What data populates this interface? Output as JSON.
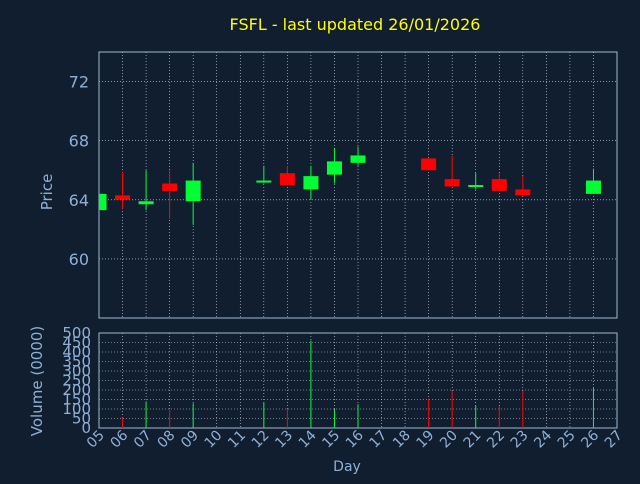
{
  "chart_data": {
    "type": "candlestick",
    "title": "FSFL - last updated 26/01/2026",
    "xlabel": "Day",
    "price_ylabel": "Price",
    "volume_ylabel": "Volume (0000)",
    "x_ticks": [
      "05",
      "06",
      "07",
      "08",
      "09",
      "10",
      "11",
      "12",
      "13",
      "14",
      "15",
      "16",
      "17",
      "18",
      "19",
      "20",
      "21",
      "22",
      "23",
      "24",
      "25",
      "26",
      "27"
    ],
    "price_ylim": [
      56,
      74
    ],
    "price_ticks": [
      60,
      64,
      68,
      72
    ],
    "volume_ylim": [
      0,
      500
    ],
    "volume_ticks": [
      0,
      50,
      100,
      150,
      200,
      250,
      300,
      350,
      400,
      450,
      500
    ],
    "grid": true,
    "colors": {
      "background": "#111e30",
      "frame": "#9fb8d0",
      "grid": "#d6dde8",
      "title": "#ffff00",
      "axis_text": "#8fb0d6",
      "up": "#00ff33",
      "down": "#ff0000"
    },
    "candles": [
      {
        "day": "05",
        "open": 63.3,
        "close": 64.4,
        "high": 64.4,
        "low": 63.2,
        "volume": 0
      },
      {
        "day": "06",
        "open": 64.3,
        "close": 64.0,
        "high": 65.9,
        "low": 63.4,
        "volume": 55
      },
      {
        "day": "07",
        "open": 63.7,
        "close": 63.9,
        "high": 66.0,
        "low": 63.3,
        "volume": 140
      },
      {
        "day": "08",
        "open": 65.1,
        "close": 64.6,
        "high": 66.0,
        "low": 62.7,
        "volume": 95
      },
      {
        "day": "09",
        "open": 63.9,
        "close": 65.3,
        "high": 66.5,
        "low": 62.3,
        "volume": 130
      },
      {
        "day": "12",
        "open": 65.2,
        "close": 65.3,
        "high": 66.3,
        "low": 65.1,
        "volume": 135
      },
      {
        "day": "13",
        "open": 65.8,
        "close": 65.0,
        "high": 66.3,
        "low": 65.0,
        "volume": 100
      },
      {
        "day": "14",
        "open": 64.7,
        "close": 65.6,
        "high": 66.3,
        "low": 64.0,
        "volume": 460
      },
      {
        "day": "15",
        "open": 65.7,
        "close": 66.6,
        "high": 67.5,
        "low": 65.1,
        "volume": 100
      },
      {
        "day": "16",
        "open": 66.5,
        "close": 67.0,
        "high": 67.6,
        "low": 66.3,
        "volume": 125
      },
      {
        "day": "19",
        "open": 66.8,
        "close": 66.0,
        "high": 66.8,
        "low": 66.0,
        "volume": 155
      },
      {
        "day": "20",
        "open": 65.4,
        "close": 64.9,
        "high": 67.0,
        "low": 64.9,
        "volume": 195
      },
      {
        "day": "21",
        "open": 64.9,
        "close": 65.0,
        "high": 65.8,
        "low": 64.7,
        "volume": 120
      },
      {
        "day": "22",
        "open": 65.4,
        "close": 64.6,
        "high": 65.8,
        "low": 64.6,
        "volume": 115
      },
      {
        "day": "23",
        "open": 64.7,
        "close": 64.3,
        "high": 65.6,
        "low": 64.3,
        "volume": 195
      },
      {
        "day": "26",
        "open": 64.4,
        "close": 65.3,
        "high": 66.1,
        "low": 64.4,
        "volume": 210
      }
    ]
  }
}
